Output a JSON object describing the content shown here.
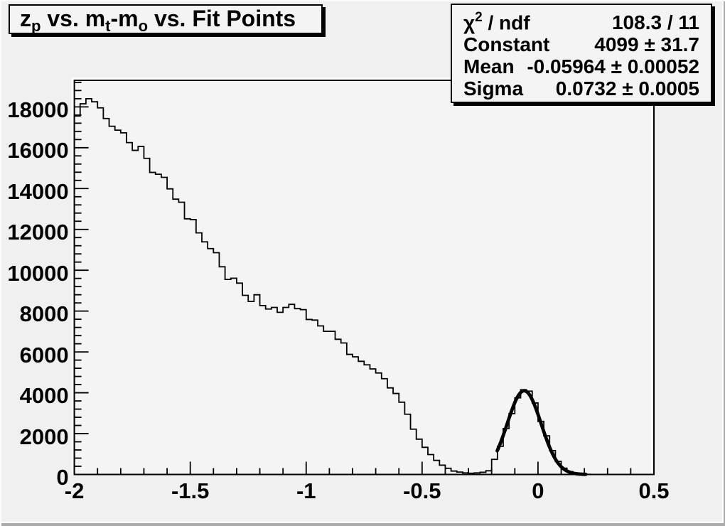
{
  "title": {
    "segments": [
      {
        "t": "z"
      },
      {
        "sub": "p"
      },
      {
        "t": " vs. m"
      },
      {
        "sub": "t"
      },
      {
        "t": "-m"
      },
      {
        "sub": "o"
      },
      {
        "t": " vs. Fit Points"
      }
    ],
    "plain": "z_p vs. m_t-m_o vs. Fit Points"
  },
  "stats_box": {
    "rows": [
      {
        "label_segments": [
          {
            "t": "χ"
          },
          {
            "sup": "2"
          },
          {
            "t": " / ndf"
          }
        ],
        "label": "chi2 / ndf",
        "value": "108.3 / 11"
      },
      {
        "label_segments": [
          {
            "t": "Constant"
          }
        ],
        "label": "Constant",
        "value": "4099 ± 31.7"
      },
      {
        "label_segments": [
          {
            "t": "Mean"
          }
        ],
        "label": "Mean",
        "value": "-0.05964 ± 0.00052"
      },
      {
        "label_segments": [
          {
            "t": "Sigma"
          }
        ],
        "label": "Sigma",
        "value": "0.0732 ± 0.0005"
      }
    ]
  },
  "colors": {
    "canvas_background": "#f0f0f0",
    "frame_background": "#f4f4f4",
    "pave_background": "#f4f4f4",
    "line": "#000000",
    "highlight": "#ffffff",
    "canvas_shadow": "#aaaaaa"
  },
  "chart_data": {
    "type": "bar",
    "render_style": "root-step-histogram-outline",
    "title": "z_p vs. m_t-m_o vs. Fit Points",
    "xlabel": "",
    "ylabel": "",
    "xlim": [
      -2.0,
      0.5
    ],
    "ylim": [
      0,
      19300
    ],
    "grid": false,
    "bin_start": -2.0,
    "bin_width": 0.025,
    "n_bins": 100,
    "values": [
      17550,
      18150,
      18400,
      18250,
      17950,
      17430,
      17050,
      16860,
      16730,
      16250,
      15870,
      16060,
      15480,
      14790,
      14700,
      14550,
      13985,
      13480,
      13330,
      12520,
      12480,
      11830,
      11390,
      11060,
      10860,
      10170,
      9550,
      9610,
      9370,
      8770,
      8470,
      8800,
      8270,
      8100,
      8180,
      7940,
      8180,
      8330,
      8120,
      8070,
      7590,
      7560,
      7275,
      7010,
      7010,
      6620,
      6440,
      5880,
      5760,
      5540,
      5370,
      5170,
      4970,
      4690,
      4240,
      3965,
      3540,
      2950,
      2220,
      1730,
      1330,
      975,
      690,
      455,
      303,
      167,
      118,
      77,
      59,
      77,
      107,
      180,
      740,
      1380,
      2250,
      2980,
      3750,
      4150,
      4080,
      3500,
      2600,
      1890,
      1170,
      640,
      310,
      140,
      55,
      20,
      8,
      3,
      2,
      1,
      2,
      1,
      1,
      0,
      1,
      0,
      1,
      0
    ],
    "fit": {
      "type": "gaussian",
      "constant": 4099,
      "mean": -0.05964,
      "sigma": 0.0732,
      "draw_range": [
        -0.176,
        0.206
      ],
      "chi2": 108.3,
      "ndf": 11
    },
    "x_axis": {
      "major_ticks": [
        {
          "v": -2,
          "label": "-2"
        },
        {
          "v": -1.5,
          "label": "-1.5"
        },
        {
          "v": -1,
          "label": "-1"
        },
        {
          "v": -0.5,
          "label": "-0.5"
        },
        {
          "v": 0,
          "label": "0"
        },
        {
          "v": 0.5,
          "label": "0.5"
        }
      ],
      "minor_tick_step": 0.1
    },
    "y_axis": {
      "major_ticks": [
        {
          "v": 0,
          "label": "0"
        },
        {
          "v": 2000,
          "label": "2000"
        },
        {
          "v": 4000,
          "label": "4000"
        },
        {
          "v": 6000,
          "label": "6000"
        },
        {
          "v": 8000,
          "label": "8000"
        },
        {
          "v": 10000,
          "label": "10000"
        },
        {
          "v": 12000,
          "label": "12000"
        },
        {
          "v": 14000,
          "label": "14000"
        },
        {
          "v": 16000,
          "label": "16000"
        },
        {
          "v": 18000,
          "label": "18000"
        }
      ],
      "minor_tick_step": 400
    },
    "legend_position": "none"
  }
}
